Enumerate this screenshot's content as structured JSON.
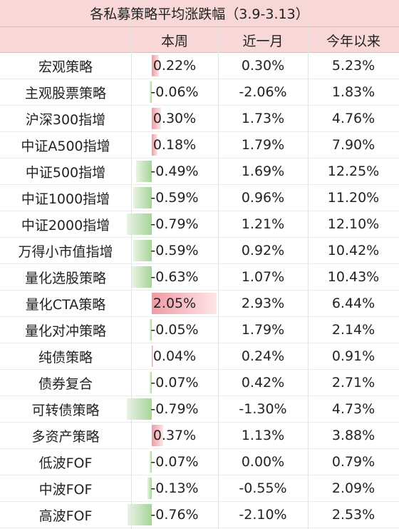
{
  "title": "各私募策略平均涨跌幅（3.9-3.13）",
  "headers": [
    "",
    "本周",
    "近一月",
    "今年以来"
  ],
  "rows": [
    {
      "name": "宏观策略",
      "week": "0.22%",
      "month": "0.30%",
      "ytd": "5.23%",
      "week_value": 0.22
    },
    {
      "name": "主观股票策略",
      "week": "-0.06%",
      "month": "-2.06%",
      "ytd": "1.83%",
      "week_value": -0.06
    },
    {
      "name": "沪深300指增",
      "week": "0.30%",
      "month": "1.73%",
      "ytd": "4.76%",
      "week_value": 0.3
    },
    {
      "name": "中证A500指增",
      "week": "0.18%",
      "month": "1.79%",
      "ytd": "7.90%",
      "week_value": 0.18
    },
    {
      "name": "中证500指增",
      "week": "-0.49%",
      "month": "1.69%",
      "ytd": "12.25%",
      "week_value": -0.49
    },
    {
      "name": "中证1000指增",
      "week": "-0.59%",
      "month": "0.96%",
      "ytd": "11.20%",
      "week_value": -0.59
    },
    {
      "name": "中证2000指增",
      "week": "-0.79%",
      "month": "1.21%",
      "ytd": "12.10%",
      "week_value": -0.79
    },
    {
      "name": "万得小市值指增",
      "week": "-0.59%",
      "month": "0.92%",
      "ytd": "10.42%",
      "week_value": -0.59
    },
    {
      "name": "量化选股策略",
      "week": "-0.63%",
      "month": "1.07%",
      "ytd": "10.43%",
      "week_value": -0.63
    },
    {
      "name": "量化CTA策略",
      "week": "2.05%",
      "month": "2.93%",
      "ytd": "6.44%",
      "week_value": 2.05
    },
    {
      "name": "量化对冲策略",
      "week": "-0.05%",
      "month": "1.79%",
      "ytd": "2.14%",
      "week_value": -0.05
    },
    {
      "name": "纯债策略",
      "week": "0.04%",
      "month": "0.24%",
      "ytd": "0.91%",
      "week_value": 0.04
    },
    {
      "name": "债券复合",
      "week": "-0.07%",
      "month": "0.42%",
      "ytd": "2.71%",
      "week_value": -0.07
    },
    {
      "name": "可转债策略",
      "week": "-0.79%",
      "month": "-1.30%",
      "ytd": "4.73%",
      "week_value": -0.79
    },
    {
      "name": "多资产策略",
      "week": "0.37%",
      "month": "1.13%",
      "ytd": "3.88%",
      "week_value": 0.37
    },
    {
      "name": "低波FOF",
      "week": "-0.07%",
      "month": "0.00%",
      "ytd": "0.79%",
      "week_value": -0.07
    },
    {
      "name": "中波FOF",
      "week": "-0.13%",
      "month": "-0.55%",
      "ytd": "2.09%",
      "week_value": -0.13
    },
    {
      "name": "高波FOF",
      "week": "-0.76%",
      "month": "-2.10%",
      "ytd": "2.53%",
      "week_value": -0.76
    }
  ]
}
